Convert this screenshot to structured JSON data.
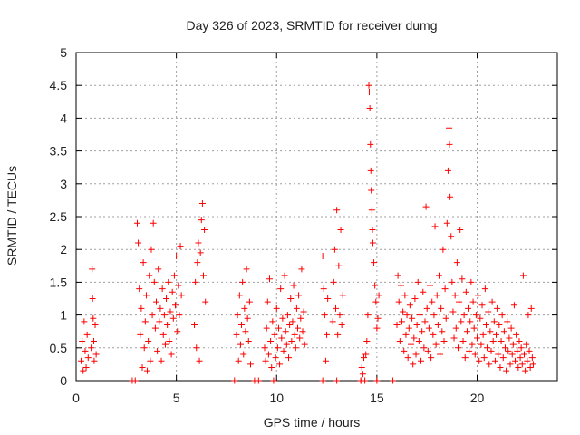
{
  "chart_data": {
    "type": "scatter",
    "title": "Day 326 of 2023, SRMTID for receiver dumg",
    "xlabel": "GPS time / hours",
    "ylabel": "SRMTID / TECUs",
    "xlim": [
      0,
      24
    ],
    "ylim": [
      0,
      5
    ],
    "x_ticks": [
      0,
      5,
      10,
      15,
      20
    ],
    "x_tick_labels": [
      "0",
      "5",
      "10",
      "15",
      "20"
    ],
    "y_ticks": [
      0,
      0.5,
      1,
      1.5,
      2,
      2.5,
      3,
      3.5,
      4,
      4.5,
      5
    ],
    "y_tick_labels": [
      "0",
      "0.5",
      "1",
      "1.5",
      "2",
      "2.5",
      "3",
      "3.5",
      "4",
      "4.5",
      "5"
    ],
    "grid": true,
    "marker": "+",
    "color": "#ff0000",
    "series": [
      {
        "points": [
          [
            0.25,
            0.3
          ],
          [
            0.3,
            0.6
          ],
          [
            0.35,
            0.15
          ],
          [
            0.4,
            0.9
          ],
          [
            0.45,
            0.45
          ],
          [
            0.5,
            0.2
          ],
          [
            0.55,
            0.7
          ],
          [
            0.6,
            0.35
          ],
          [
            0.75,
            0.5
          ],
          [
            0.8,
            1.7
          ],
          [
            0.82,
            1.25
          ],
          [
            0.85,
            0.95
          ],
          [
            0.88,
            0.6
          ],
          [
            0.9,
            0.3
          ],
          [
            0.95,
            0.85
          ],
          [
            1.0,
            0.4
          ],
          [
            2.8,
            0.0
          ],
          [
            2.95,
            0.0
          ],
          [
            3.05,
            2.4
          ],
          [
            3.1,
            2.1
          ],
          [
            3.15,
            1.4
          ],
          [
            3.2,
            0.7
          ],
          [
            3.25,
            1.1
          ],
          [
            3.3,
            0.2
          ],
          [
            3.35,
            1.8
          ],
          [
            3.4,
            0.5
          ],
          [
            3.45,
            0.9
          ],
          [
            3.5,
            1.3
          ],
          [
            3.55,
            0.15
          ],
          [
            3.6,
            0.6
          ],
          [
            3.65,
            1.6
          ],
          [
            3.7,
            0.3
          ],
          [
            3.75,
            2.0
          ],
          [
            3.8,
            1.0
          ],
          [
            3.85,
            2.4
          ],
          [
            3.9,
            1.5
          ],
          [
            3.95,
            0.8
          ],
          [
            4.0,
            1.2
          ],
          [
            4.05,
            0.45
          ],
          [
            4.1,
            1.7
          ],
          [
            4.15,
            0.9
          ],
          [
            4.2,
            1.1
          ],
          [
            4.25,
            0.3
          ],
          [
            4.3,
            1.4
          ],
          [
            4.35,
            0.7
          ],
          [
            4.4,
            1.0
          ],
          [
            4.45,
            0.55
          ],
          [
            4.5,
            1.25
          ],
          [
            4.55,
            0.85
          ],
          [
            4.6,
            1.5
          ],
          [
            4.65,
            0.6
          ],
          [
            4.7,
            1.05
          ],
          [
            4.75,
            0.4
          ],
          [
            4.8,
            1.35
          ],
          [
            4.85,
            0.95
          ],
          [
            4.9,
            1.6
          ],
          [
            4.95,
            1.15
          ],
          [
            5.0,
            1.9
          ],
          [
            5.05,
            0.75
          ],
          [
            5.1,
            1.45
          ],
          [
            5.15,
            1.0
          ],
          [
            5.2,
            2.05
          ],
          [
            5.25,
            1.3
          ],
          [
            5.9,
            0.85
          ],
          [
            5.95,
            1.5
          ],
          [
            6.0,
            0.5
          ],
          [
            6.05,
            1.8
          ],
          [
            6.1,
            2.1
          ],
          [
            6.15,
            0.3
          ],
          [
            6.2,
            1.95
          ],
          [
            6.25,
            2.45
          ],
          [
            6.3,
            2.7
          ],
          [
            6.35,
            1.6
          ],
          [
            6.4,
            2.3
          ],
          [
            6.45,
            1.2
          ],
          [
            7.9,
            0.0
          ],
          [
            8.0,
            0.7
          ],
          [
            8.05,
            1.0
          ],
          [
            8.1,
            0.3
          ],
          [
            8.15,
            1.3
          ],
          [
            8.2,
            0.55
          ],
          [
            8.25,
            0.85
          ],
          [
            8.3,
            1.5
          ],
          [
            8.35,
            0.4
          ],
          [
            8.4,
            1.1
          ],
          [
            8.45,
            0.75
          ],
          [
            8.5,
            1.7
          ],
          [
            8.55,
            0.95
          ],
          [
            8.6,
            0.6
          ],
          [
            8.65,
            1.2
          ],
          [
            8.7,
            0.25
          ],
          [
            8.9,
            0.0
          ],
          [
            9.1,
            0.0
          ],
          [
            9.4,
            0.5
          ],
          [
            9.45,
            0.3
          ],
          [
            9.5,
            0.8
          ],
          [
            9.55,
            1.2
          ],
          [
            9.6,
            0.4
          ],
          [
            9.65,
            1.55
          ],
          [
            9.7,
            0.6
          ],
          [
            9.75,
            0.2
          ],
          [
            9.8,
            0.9
          ],
          [
            9.85,
            0.0
          ],
          [
            9.9,
            0.7
          ],
          [
            9.95,
            0.35
          ],
          [
            10.0,
            1.1
          ],
          [
            10.05,
            0.5
          ],
          [
            10.1,
            0.8
          ],
          [
            10.15,
            0.25
          ],
          [
            10.2,
            1.4
          ],
          [
            10.25,
            0.65
          ],
          [
            10.3,
            0.95
          ],
          [
            10.35,
            0.45
          ],
          [
            10.4,
            1.6
          ],
          [
            10.45,
            0.75
          ],
          [
            10.5,
            0.55
          ],
          [
            10.55,
            1.0
          ],
          [
            10.6,
            0.35
          ],
          [
            10.65,
            0.85
          ],
          [
            10.7,
            1.25
          ],
          [
            10.75,
            0.6
          ],
          [
            10.8,
            0.9
          ],
          [
            10.85,
            1.45
          ],
          [
            10.9,
            0.7
          ],
          [
            10.95,
            0.5
          ],
          [
            11.0,
            1.1
          ],
          [
            11.05,
            0.8
          ],
          [
            11.1,
            1.3
          ],
          [
            11.15,
            0.65
          ],
          [
            11.2,
            0.95
          ],
          [
            11.25,
            1.7
          ],
          [
            11.3,
            0.75
          ],
          [
            11.35,
            1.05
          ],
          [
            11.4,
            0.55
          ],
          [
            12.3,
            1.9
          ],
          [
            12.35,
            1.4
          ],
          [
            12.4,
            1.0
          ],
          [
            12.45,
            0.3
          ],
          [
            12.5,
            0.7
          ],
          [
            12.55,
            1.25
          ],
          [
            12.3,
            0.0
          ],
          [
            12.8,
            0.9
          ],
          [
            12.85,
            1.5
          ],
          [
            12.9,
            2.0
          ],
          [
            12.95,
            1.1
          ],
          [
            13.0,
            2.6
          ],
          [
            13.05,
            0.7
          ],
          [
            13.1,
            1.75
          ],
          [
            13.15,
            1.0
          ],
          [
            13.2,
            2.3
          ],
          [
            13.25,
            0.85
          ],
          [
            13.3,
            1.3
          ],
          [
            13.0,
            0.0
          ],
          [
            14.2,
            0.0
          ],
          [
            14.25,
            0.2
          ],
          [
            14.3,
            0.1
          ],
          [
            14.35,
            0.35
          ],
          [
            14.4,
            0.0
          ],
          [
            14.45,
            0.4
          ],
          [
            14.5,
            0.6
          ],
          [
            14.55,
            1.0
          ],
          [
            14.6,
            4.5
          ],
          [
            14.62,
            4.4
          ],
          [
            14.65,
            4.15
          ],
          [
            14.68,
            3.6
          ],
          [
            14.7,
            3.2
          ],
          [
            14.72,
            2.9
          ],
          [
            14.75,
            2.6
          ],
          [
            14.78,
            2.3
          ],
          [
            14.8,
            2.1
          ],
          [
            14.85,
            1.8
          ],
          [
            14.9,
            1.45
          ],
          [
            14.95,
            1.2
          ],
          [
            15.0,
            0.8
          ],
          [
            15.05,
            0.95
          ],
          [
            15.1,
            1.3
          ],
          [
            14.2,
            0.0
          ],
          [
            15.0,
            0.0
          ],
          [
            15.8,
            0.0
          ],
          [
            16.0,
            0.85
          ],
          [
            16.05,
            1.6
          ],
          [
            16.1,
            1.2
          ],
          [
            16.15,
            0.6
          ],
          [
            16.2,
            1.45
          ],
          [
            16.25,
            0.9
          ],
          [
            16.3,
            1.05
          ],
          [
            16.35,
            0.45
          ],
          [
            16.4,
            1.3
          ],
          [
            16.45,
            0.7
          ],
          [
            16.5,
            1.0
          ],
          [
            16.55,
            0.35
          ],
          [
            16.6,
            0.8
          ],
          [
            16.65,
            1.15
          ],
          [
            16.7,
            0.55
          ],
          [
            16.75,
            0.95
          ],
          [
            16.8,
            0.25
          ],
          [
            16.85,
            0.65
          ],
          [
            16.9,
            1.25
          ],
          [
            16.95,
            0.4
          ],
          [
            17.0,
            0.85
          ],
          [
            17.05,
            1.5
          ],
          [
            17.1,
            0.6
          ],
          [
            17.15,
            1.0
          ],
          [
            17.2,
            0.3
          ],
          [
            17.25,
            0.75
          ],
          [
            17.3,
            1.35
          ],
          [
            17.35,
            0.5
          ],
          [
            17.4,
            0.9
          ],
          [
            17.45,
            2.65
          ],
          [
            17.5,
            1.1
          ],
          [
            17.55,
            0.45
          ],
          [
            17.6,
            0.8
          ],
          [
            17.65,
            1.45
          ],
          [
            17.7,
            0.35
          ],
          [
            17.75,
            1.2
          ],
          [
            17.8,
            0.7
          ],
          [
            17.85,
            1.0
          ],
          [
            17.9,
            2.35
          ],
          [
            17.95,
            0.55
          ],
          [
            18.0,
            1.3
          ],
          [
            18.05,
            0.85
          ],
          [
            18.1,
            1.6
          ],
          [
            18.15,
            0.4
          ],
          [
            18.2,
            1.1
          ],
          [
            18.25,
            0.75
          ],
          [
            18.3,
            2.0
          ],
          [
            18.35,
            0.6
          ],
          [
            18.4,
            1.4
          ],
          [
            18.45,
            0.95
          ],
          [
            18.5,
            2.4
          ],
          [
            18.55,
            3.2
          ],
          [
            18.6,
            3.85
          ],
          [
            18.62,
            3.6
          ],
          [
            18.65,
            2.8
          ],
          [
            18.7,
            2.2
          ],
          [
            18.75,
            1.5
          ],
          [
            18.8,
            1.05
          ],
          [
            18.85,
            0.65
          ],
          [
            18.9,
            1.3
          ],
          [
            18.95,
            0.8
          ],
          [
            19.0,
            1.8
          ],
          [
            19.05,
            0.5
          ],
          [
            19.1,
            1.2
          ],
          [
            19.15,
            2.3
          ],
          [
            19.2,
            0.9
          ],
          [
            19.25,
            1.55
          ],
          [
            19.3,
            0.6
          ],
          [
            19.35,
            1.0
          ],
          [
            19.4,
            0.35
          ],
          [
            19.45,
            1.35
          ],
          [
            19.5,
            0.75
          ],
          [
            19.55,
            1.1
          ],
          [
            19.6,
            0.45
          ],
          [
            19.65,
            0.9
          ],
          [
            19.7,
            1.5
          ],
          [
            19.75,
            0.55
          ],
          [
            19.8,
            1.2
          ],
          [
            19.85,
            0.8
          ],
          [
            19.9,
            0.4
          ],
          [
            19.95,
            1.0
          ],
          [
            20.0,
            0.65
          ],
          [
            20.05,
            1.3
          ],
          [
            20.1,
            0.3
          ],
          [
            20.15,
            0.95
          ],
          [
            20.2,
            0.55
          ],
          [
            20.25,
            1.15
          ],
          [
            20.3,
            0.7
          ],
          [
            20.35,
            0.35
          ],
          [
            20.4,
            1.4
          ],
          [
            20.45,
            0.85
          ],
          [
            20.5,
            0.5
          ],
          [
            20.55,
            1.05
          ],
          [
            20.6,
            0.25
          ],
          [
            20.65,
            0.75
          ],
          [
            20.7,
            0.45
          ],
          [
            20.75,
            1.2
          ],
          [
            20.8,
            0.6
          ],
          [
            20.85,
            0.9
          ],
          [
            20.9,
            0.3
          ],
          [
            20.95,
            0.7
          ],
          [
            21.0,
            1.1
          ],
          [
            21.05,
            0.4
          ],
          [
            21.1,
            0.85
          ],
          [
            21.15,
            0.2
          ],
          [
            21.2,
            0.6
          ],
          [
            21.25,
            1.0
          ],
          [
            21.3,
            0.35
          ],
          [
            21.35,
            0.75
          ],
          [
            21.4,
            0.5
          ],
          [
            21.45,
            0.15
          ],
          [
            21.5,
            0.9
          ],
          [
            21.55,
            0.45
          ],
          [
            21.6,
            0.65
          ],
          [
            21.65,
            0.25
          ],
          [
            21.7,
            0.8
          ],
          [
            21.75,
            0.4
          ],
          [
            21.8,
            0.55
          ],
          [
            21.85,
            1.15
          ],
          [
            21.9,
            0.3
          ],
          [
            21.95,
            0.7
          ],
          [
            22.0,
            0.45
          ],
          [
            22.05,
            0.2
          ],
          [
            22.1,
            0.6
          ],
          [
            22.15,
            0.35
          ],
          [
            22.2,
            0.5
          ],
          [
            22.25,
            0.25
          ],
          [
            22.3,
            1.6
          ],
          [
            22.35,
            0.4
          ],
          [
            22.4,
            0.15
          ],
          [
            22.45,
            0.55
          ],
          [
            22.5,
            0.3
          ],
          [
            22.55,
            1.0
          ],
          [
            22.6,
            0.45
          ],
          [
            22.65,
            0.2
          ],
          [
            22.7,
            1.1
          ],
          [
            22.75,
            0.35
          ],
          [
            22.8,
            0.25
          ]
        ]
      }
    ]
  }
}
